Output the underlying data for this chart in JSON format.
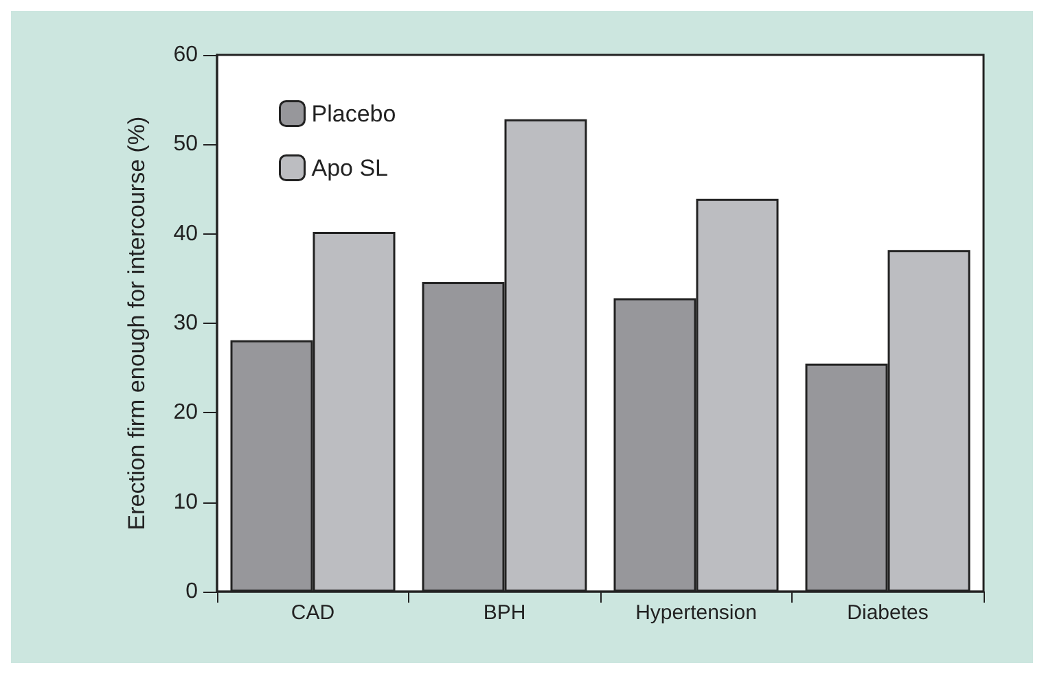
{
  "chart_data": {
    "type": "bar",
    "ylabel": "Erection firm enough for intercourse (%)",
    "categories": [
      "CAD",
      "BPH",
      "Hypertension",
      "Diabetes"
    ],
    "series": [
      {
        "name": "Placebo",
        "color": "#97979b",
        "values": [
          28.1,
          34.6,
          32.8,
          25.5
        ]
      },
      {
        "name": "Apo SL",
        "color": "#bcbdc1",
        "values": [
          40.2,
          52.8,
          43.9,
          38.2
        ]
      }
    ],
    "ylim": [
      0,
      60
    ],
    "yticks": [
      0,
      10,
      20,
      30,
      40,
      50,
      60
    ],
    "grid": false,
    "legend": "top left"
  }
}
